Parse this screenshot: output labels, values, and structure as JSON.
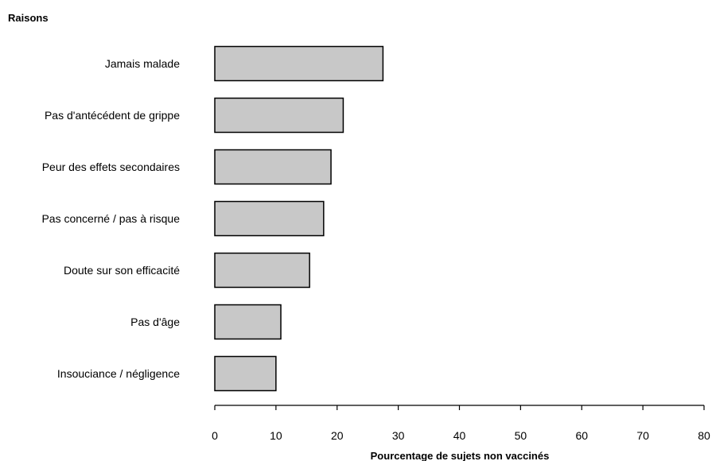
{
  "chart_data": {
    "type": "bar",
    "orientation": "horizontal",
    "category_axis_title": "Raisons",
    "xlabel": "Pourcentage de sujets non vaccinés",
    "categories": [
      "Jamais malade",
      "Pas d'antécédent de grippe",
      "Peur des effets secondaires",
      "Pas concerné / pas à risque",
      "Doute sur son efficacité",
      "Pas d'âge",
      "Insouciance / négligence"
    ],
    "values": [
      27.5,
      21,
      19,
      17.8,
      15.5,
      10.8,
      10
    ],
    "xlim": [
      0,
      80
    ],
    "xticks": [
      0,
      10,
      20,
      30,
      40,
      50,
      60,
      70,
      80
    ],
    "bar_color": "#c8c8c8",
    "bar_stroke": "#000000",
    "grid": false
  }
}
